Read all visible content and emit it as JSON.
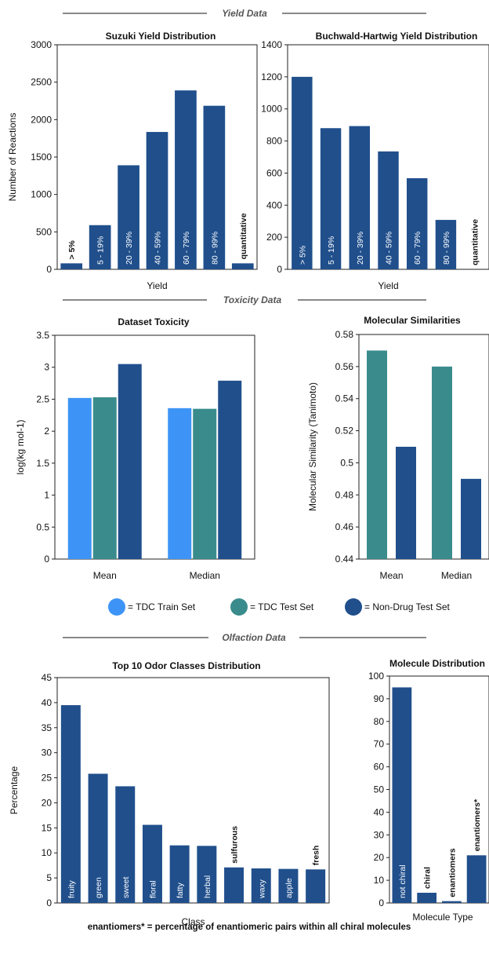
{
  "sections": {
    "yield": "Yield Data",
    "toxicity": "Toxicity Data",
    "olfaction": "Olfaction Data"
  },
  "legend": {
    "items": [
      {
        "label": "= TDC Train Set",
        "color": "#3d94f6"
      },
      {
        "label": "= TDC Test Set",
        "color": "#3a8c8c"
      },
      {
        "label": "= Non-Drug Test Set",
        "color": "#204f8c"
      }
    ]
  },
  "footnote": "enantiomers* = percentage of enantiomeric pairs within all chiral molecules",
  "chart_data": [
    {
      "id": "suzuki",
      "type": "bar",
      "title": "Suzuki Yield Distribution",
      "xlabel": "Yield",
      "ylabel": "Number of Reactions",
      "ylim": [
        0,
        3000
      ],
      "yticks": [
        "0",
        "500",
        "1000",
        "1500",
        "2000",
        "2500",
        "3000"
      ],
      "grid": false,
      "bar_color": "#204f8c",
      "categories": [
        "> 5%",
        "5 - 19%",
        "20 - 39%",
        "40 - 59%",
        "60 - 79%",
        "80 - 99%",
        "quantitative"
      ],
      "values": [
        80,
        590,
        1390,
        1835,
        2390,
        2185,
        80
      ]
    },
    {
      "id": "buchwald",
      "type": "bar",
      "title": "Buchwald-Hartwig Yield Distribution",
      "xlabel": "Yield",
      "ylabel": "",
      "ylim": [
        0,
        1400
      ],
      "yticks": [
        "0",
        "200",
        "400",
        "600",
        "800",
        "1000",
        "1200",
        "1400"
      ],
      "grid": false,
      "bar_color": "#204f8c",
      "categories": [
        "> 5%",
        "5 - 19%",
        "20 - 39%",
        "40 - 59%",
        "60 - 79%",
        "80 - 99%",
        "quantitative"
      ],
      "values": [
        1200,
        880,
        893,
        735,
        568,
        308,
        0
      ]
    },
    {
      "id": "toxicity",
      "type": "bar",
      "title": "Dataset Toxicity",
      "xlabel": "",
      "ylabel": "log(kg mol-1)",
      "ylim": [
        0,
        3.5
      ],
      "yticks": [
        "0",
        "0.5",
        "1",
        "1.5",
        "2",
        "2.5",
        "3",
        "3.5"
      ],
      "grid": false,
      "categories": [
        "Mean",
        "Median"
      ],
      "series": [
        {
          "name": "TDC Train Set",
          "values": [
            2.52,
            2.36
          ],
          "color": "#3d94f6"
        },
        {
          "name": "TDC Test Set",
          "values": [
            2.53,
            2.35
          ],
          "color": "#3a8c8c"
        },
        {
          "name": "Non-Drug Test Set",
          "values": [
            3.05,
            2.79
          ],
          "color": "#204f8c"
        }
      ]
    },
    {
      "id": "similarity",
      "type": "bar",
      "title": "Molecular Similarities",
      "xlabel": "",
      "ylabel": "Molecular Similarity (Tanimoto)",
      "ylim": [
        0.44,
        0.58
      ],
      "yticks": [
        "0.44",
        "0.46",
        "0.48",
        "0.5",
        "0.52",
        "0.54",
        "0.56",
        "0.58"
      ],
      "grid": false,
      "categories": [
        "Mean",
        "Median"
      ],
      "series": [
        {
          "name": "TDC Test Set",
          "values": [
            0.57,
            0.56
          ],
          "color": "#3a8c8c"
        },
        {
          "name": "Non-Drug Test Set",
          "values": [
            0.51,
            0.49
          ],
          "color": "#204f8c"
        }
      ]
    },
    {
      "id": "odor",
      "type": "bar",
      "title": "Top 10 Odor Classes Distribution",
      "xlabel": "Class",
      "ylabel": "Percentage",
      "ylim": [
        0,
        45
      ],
      "yticks": [
        "0",
        "5",
        "10",
        "15",
        "20",
        "25",
        "30",
        "35",
        "40",
        "45"
      ],
      "grid": false,
      "bar_color": "#204f8c",
      "categories": [
        "fruity",
        "green",
        "sweet",
        "floral",
        "fatty",
        "herbal",
        "sulfurous",
        "waxy",
        "apple",
        "fresh"
      ],
      "values": [
        39.5,
        25.8,
        23.3,
        15.6,
        11.5,
        11.4,
        7.1,
        6.9,
        6.8,
        6.7
      ]
    },
    {
      "id": "molecule",
      "type": "bar",
      "title": "Molecule Distribution",
      "xlabel": "Molecule Type",
      "ylabel": "",
      "ylim": [
        0,
        100
      ],
      "yticks": [
        "0",
        "10",
        "20",
        "30",
        "40",
        "50",
        "60",
        "70",
        "80",
        "90",
        "100"
      ],
      "grid": false,
      "bar_color": "#204f8c",
      "categories": [
        "not chiral",
        "chiral",
        "enantiomers",
        "enantiomers*"
      ],
      "values": [
        95,
        4.5,
        0.8,
        21
      ]
    }
  ]
}
